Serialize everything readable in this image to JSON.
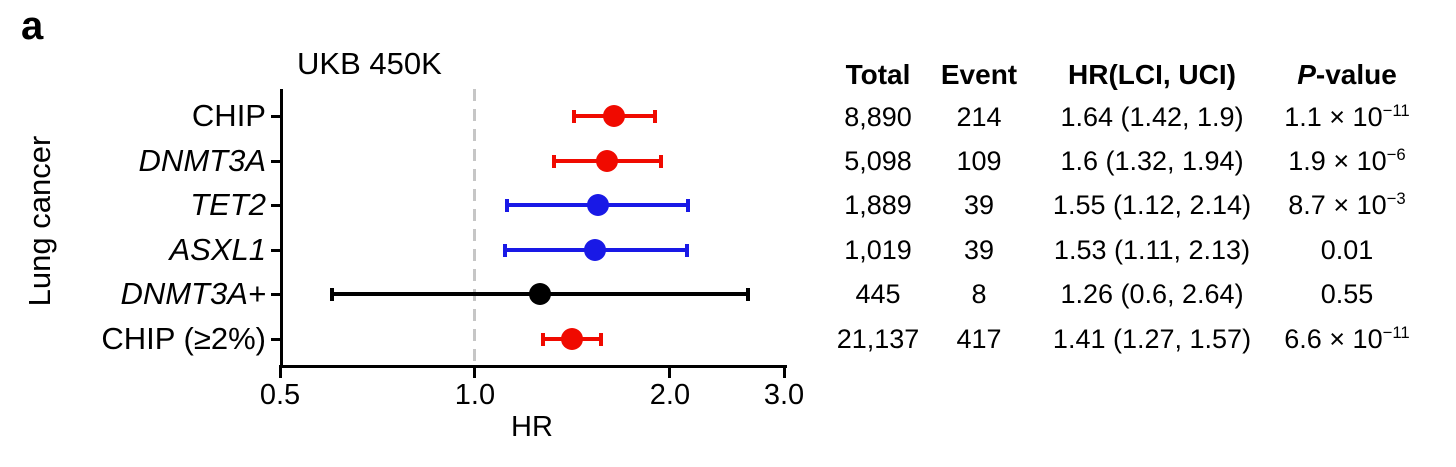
{
  "panel_label": "a",
  "chart_data": {
    "type": "forest",
    "title": "UKB 450K",
    "xlabel": "HR",
    "ylabel": "Lung cancer",
    "x_scale": "log",
    "xlim": [
      0.5,
      3.0
    ],
    "x_ticks": [
      0.5,
      1.0,
      2.0,
      3.0
    ],
    "x_tick_labels": [
      "0.5",
      "1.0",
      "2.0",
      "3.0"
    ],
    "reference_line": 1.0,
    "grid": false,
    "colors": {
      "chip_red": "#f00a00",
      "gene_blue": "#1919e6",
      "neutral_black": "#000000",
      "refline_gray": "#c6c6c6"
    },
    "rows": [
      {
        "label": "CHIP",
        "hr": 1.64,
        "lci": 1.42,
        "uci": 1.9,
        "color": "#f00a00"
      },
      {
        "label": "DNMT3A",
        "hr": 1.6,
        "lci": 1.32,
        "uci": 1.94,
        "color": "#f00a00"
      },
      {
        "label": "TET2",
        "hr": 1.55,
        "lci": 1.12,
        "uci": 2.14,
        "color": "#1919e6"
      },
      {
        "label": "ASXL1",
        "hr": 1.53,
        "lci": 1.11,
        "uci": 2.13,
        "color": "#1919e6"
      },
      {
        "label": "DNMT3A+",
        "hr": 1.26,
        "lci": 0.6,
        "uci": 2.64,
        "color": "#000000"
      },
      {
        "label": "CHIP (≥2%)",
        "hr": 1.41,
        "lci": 1.27,
        "uci": 1.57,
        "color": "#f00a00"
      }
    ]
  },
  "table": {
    "headers": {
      "total": "Total",
      "event": "Event",
      "hr": "HR(LCI, UCI)",
      "p_italic": "P",
      "p_rest": "-value"
    },
    "rows": [
      {
        "total": "8,890",
        "event": "214",
        "hr": "1.64 (1.42, 1.9)",
        "p_base": "1.1 × 10",
        "p_exp": "−11"
      },
      {
        "total": "5,098",
        "event": "109",
        "hr": "1.6 (1.32, 1.94)",
        "p_base": "1.9 × 10",
        "p_exp": "−6"
      },
      {
        "total": "1,889",
        "event": "39",
        "hr": "1.55 (1.12, 2.14)",
        "p_base": "8.7 × 10",
        "p_exp": "−3"
      },
      {
        "total": "1,019",
        "event": "39",
        "hr": "1.53 (1.11, 2.13)",
        "p_base": "0.01"
      },
      {
        "total": "445",
        "event": "8",
        "hr": "1.26 (0.6, 2.64)",
        "p_base": "0.55"
      },
      {
        "total": "21,137",
        "event": "417",
        "hr": "1.41 (1.27, 1.57)",
        "p_base": "6.6 × 10",
        "p_exp": "−11"
      }
    ]
  }
}
